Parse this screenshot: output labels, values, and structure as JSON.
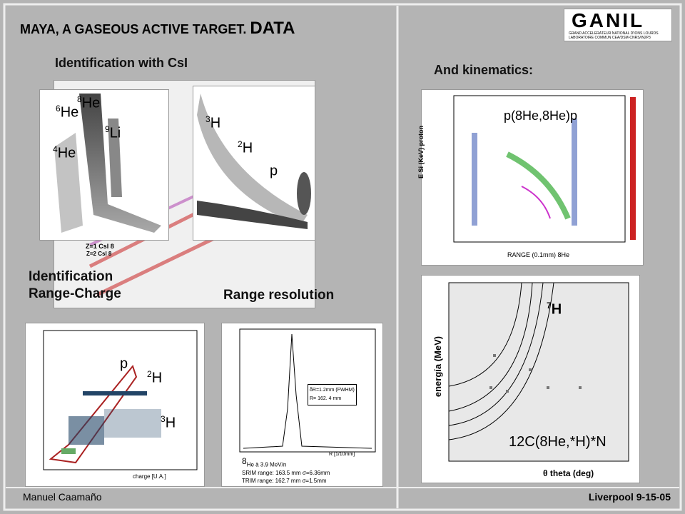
{
  "header": {
    "title": "MAYA, A GASEOUS ACTIVE TARGET.",
    "title_emphasis": "DATA"
  },
  "logo": {
    "name": "GANIL",
    "line1": "GRAND ACCELERATEUR NATIONAL D'IONS LOURDS",
    "line2": "LABORATOIRE COMMUN CEA/DSM-CNRS/IN2P3"
  },
  "left": {
    "csi_heading": "Identification with CsI",
    "csi_plot": {
      "labels": [
        {
          "mass": "6",
          "symbol": "He"
        },
        {
          "mass": "8",
          "symbol": "He"
        },
        {
          "mass": "9",
          "symbol": "Li"
        },
        {
          "mass": "4",
          "symbol": "He"
        },
        {
          "mass": "3",
          "symbol": "H"
        },
        {
          "mass": "2",
          "symbol": "H"
        },
        {
          "mass": "",
          "symbol": "p"
        }
      ],
      "z2": "Z=2 CsI 8",
      "z1": "Z=1 CsI 8"
    },
    "range_charge_heading": [
      "Identification",
      "Range-Charge"
    ],
    "range_charge_plot": {
      "labels": [
        {
          "mass": "",
          "symbol": "p"
        },
        {
          "mass": "2",
          "symbol": "H"
        },
        {
          "mass": "3",
          "symbol": "H"
        }
      ],
      "x_axis": "charge [U.A.]"
    },
    "range_resolution_heading": "Range resolution",
    "range_resolution_plot": {
      "box": [
        "δR=1.2mm (FWHM)",
        "R= 162. 4 mm"
      ],
      "x_axis": "R [1/10mm]",
      "beam": "He à 3.9 MeV/n",
      "beam_mass": "8",
      "srim": "SRIM range: 163.5 mm σ=6.36mm",
      "trim": "TRIM range: 162.7 mm σ=1.5mm"
    }
  },
  "right": {
    "heading": "And kinematics:",
    "kinematics_plot": {
      "title": "p(8He,8He)p",
      "y_axis": "E Si (KeV) proton",
      "x_axis": "RANGE  (0.1mm) 8He"
    },
    "h7_plot": {
      "label_mass": "7",
      "label_symbol": "H",
      "reaction": "12C(8He,*H)*N",
      "y_axis": "energía (MeV)",
      "x_axis": "θ theta (deg)"
    }
  },
  "footer": {
    "author": "Manuel Caamaño",
    "place_date": "Liverpool 9-15-05"
  }
}
